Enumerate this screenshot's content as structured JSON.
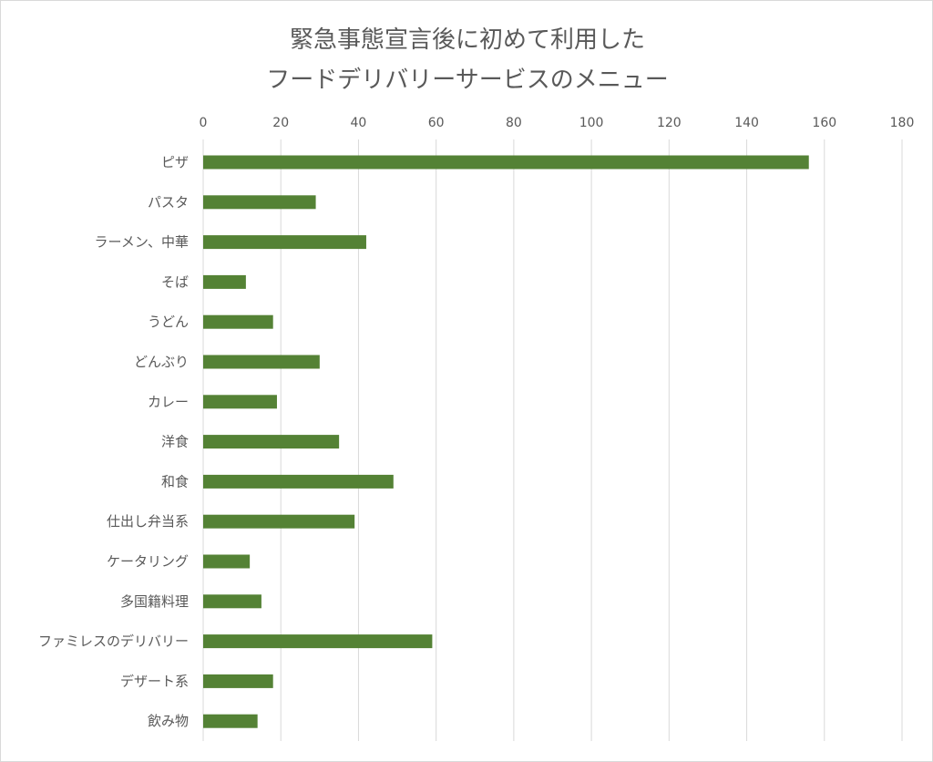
{
  "chart_data": {
    "type": "bar",
    "orientation": "horizontal",
    "title_lines": [
      "緊急事態宣言後に初めて利用した",
      "フードデリバリーサービスのメニュー"
    ],
    "categories": [
      "ピザ",
      "パスタ",
      "ラーメン、中華",
      "そば",
      "うどん",
      "どんぶり",
      "カレー",
      "洋食",
      "和食",
      "仕出し弁当系",
      "ケータリング",
      "多国籍料理",
      "ファミレスのデリバリー",
      "デザート系",
      "飲み物"
    ],
    "values": [
      156,
      29,
      42,
      11,
      18,
      30,
      19,
      35,
      49,
      39,
      12,
      15,
      59,
      18,
      14
    ],
    "xlim": [
      0,
      180
    ],
    "xticks": [
      "0",
      "20",
      "40",
      "60",
      "80",
      "100",
      "120",
      "140",
      "160",
      "180"
    ],
    "x_axis_position": "top",
    "grid": true,
    "legend": "none",
    "bar_color": "#548235"
  }
}
